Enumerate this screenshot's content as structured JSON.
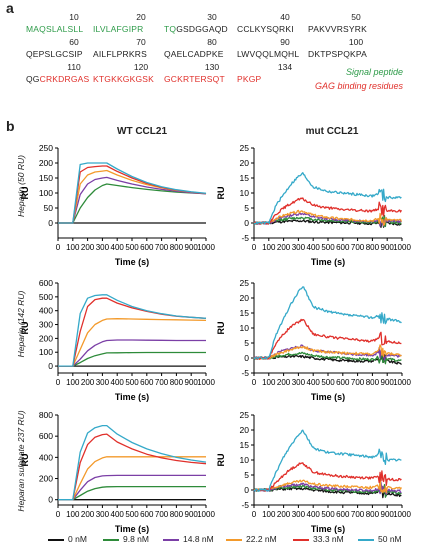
{
  "panel_a_letter": "a",
  "panel_b_letter": "b",
  "sequence": {
    "rows": [
      {
        "nums": [
          "10",
          "20",
          "30",
          "40",
          "50"
        ],
        "segments": [
          [
            {
              "t": "MAQSLALSLL",
              "c": "#2e9b49"
            }
          ],
          [
            {
              "t": "ILVLAFGIPR",
              "c": "#2e9b49"
            },
            {
              "t": " ",
              "c": "#222"
            }
          ],
          [
            {
              "t": "TQ",
              "c": "#2e9b49"
            },
            {
              "t": "GSDGGAQD",
              "c": "#222"
            }
          ],
          [
            {
              "t": "CCLKYSQRKI",
              "c": "#222"
            }
          ],
          [
            {
              "t": "PAKVVRSYRK",
              "c": "#222"
            }
          ]
        ]
      },
      {
        "nums": [
          "60",
          "70",
          "80",
          "90",
          "100"
        ],
        "segments": [
          [
            {
              "t": "QEPSLGCSIP",
              "c": "#222"
            }
          ],
          [
            {
              "t": "AILFLPRKRS",
              "c": "#222"
            }
          ],
          [
            {
              "t": "QAELCADPKE",
              "c": "#222"
            }
          ],
          [
            {
              "t": "LWVQQLMQHL",
              "c": "#222"
            }
          ],
          [
            {
              "t": "DKTPSPQKPA",
              "c": "#222"
            }
          ]
        ]
      },
      {
        "nums": [
          "110",
          "120",
          "130",
          "134",
          ""
        ],
        "segments": [
          [
            {
              "t": "QG",
              "c": "#222"
            },
            {
              "t": "CRKDRGAS",
              "c": "#e0302b"
            }
          ],
          [
            {
              "t": "KTGKKGKGSK",
              "c": "#e0302b"
            }
          ],
          [
            {
              "t": "GCKRTERSQT",
              "c": "#e0302b"
            }
          ],
          [
            {
              "t": "PKGP",
              "c": "#e0302b"
            }
          ],
          []
        ]
      }
    ],
    "signal_peptide_label": "Signal peptide",
    "signal_peptide_color": "#2e9b49",
    "gag_label": "GAG binding residues",
    "gag_color": "#e0302b"
  },
  "columns": {
    "wt": "WT CCL21",
    "mut": "mut CCL21"
  },
  "rows_labels": [
    "Heparin (50 RU)",
    "Heparin (142 RU)",
    "Heparan sulphate 237 RU)"
  ],
  "legend": [
    {
      "label": "0 nM",
      "color": "#111111"
    },
    {
      "label": "9.8 nM",
      "color": "#2e8b3a"
    },
    {
      "label": "14.8 nM",
      "color": "#7b3fa6"
    },
    {
      "label": "22.2 nM",
      "color": "#f39a2b"
    },
    {
      "label": "33.3 nM",
      "color": "#e0302b"
    },
    {
      "label": "50 nM",
      "color": "#35a9c9"
    }
  ],
  "chart_data": [
    {
      "type": "line",
      "panel": "WT CCL21 / Heparin (50 RU)",
      "xlabel": "Time (s)",
      "ylabel": "RU",
      "xlim": [
        0,
        1000
      ],
      "ylim": [
        -50,
        250
      ],
      "xticks": [
        0,
        100,
        200,
        300,
        400,
        500,
        600,
        700,
        800,
        900,
        1000
      ],
      "yticks": [
        0,
        50,
        100,
        150,
        200,
        250
      ],
      "noisy": false,
      "x": [
        0,
        100,
        150,
        200,
        250,
        300,
        330,
        400,
        500,
        600,
        700,
        800,
        900,
        1000
      ],
      "series": [
        {
          "name": "0 nM",
          "values": [
            0,
            0,
            0,
            0,
            0,
            0,
            0,
            0,
            0,
            0,
            0,
            0,
            0,
            0
          ]
        },
        {
          "name": "9.8 nM",
          "values": [
            0,
            0,
            50,
            85,
            110,
            125,
            130,
            125,
            118,
            112,
            107,
            103,
            100,
            98
          ]
        },
        {
          "name": "14.8 nM",
          "values": [
            0,
            0,
            95,
            130,
            145,
            150,
            152,
            142,
            130,
            120,
            112,
            106,
            101,
            97
          ]
        },
        {
          "name": "22.2 nM",
          "values": [
            0,
            0,
            130,
            160,
            170,
            173,
            175,
            160,
            142,
            128,
            117,
            109,
            103,
            98
          ]
        },
        {
          "name": "33.3 nM",
          "values": [
            0,
            0,
            170,
            185,
            188,
            190,
            190,
            172,
            150,
            132,
            119,
            110,
            103,
            98
          ]
        },
        {
          "name": "50 nM",
          "values": [
            0,
            0,
            195,
            200,
            200,
            200,
            200,
            180,
            155,
            135,
            121,
            111,
            104,
            99
          ]
        }
      ]
    },
    {
      "type": "line",
      "panel": "mut CCL21 / Heparin (50 RU)",
      "xlabel": "Time (s)",
      "ylabel": "RU",
      "xlim": [
        0,
        1000
      ],
      "ylim": [
        -5,
        25
      ],
      "xticks": [
        0,
        100,
        200,
        300,
        400,
        500,
        600,
        700,
        800,
        900,
        1000
      ],
      "yticks": [
        -5,
        0,
        5,
        10,
        15,
        20,
        25
      ],
      "noisy": true,
      "x": [
        0,
        100,
        150,
        200,
        250,
        300,
        330,
        400,
        500,
        600,
        700,
        800,
        850,
        900,
        1000
      ],
      "series": [
        {
          "name": "0 nM",
          "values": [
            0,
            0,
            0.3,
            0.5,
            0.6,
            0.7,
            0.7,
            0.4,
            0.2,
            0.1,
            0,
            -0.2,
            0,
            0,
            -0.5
          ]
        },
        {
          "name": "9.8 nM",
          "values": [
            0,
            0,
            0.8,
            1.2,
            1.5,
            1.7,
            1.8,
            1.2,
            0.8,
            0.6,
            0.4,
            0.2,
            0.5,
            0.5,
            -0.2
          ]
        },
        {
          "name": "14.8 nM",
          "values": [
            0,
            0,
            1.2,
            2,
            2.6,
            3,
            3.2,
            2,
            1.4,
            1,
            0.8,
            0.6,
            1,
            0.8,
            0.5
          ]
        },
        {
          "name": "22.2 nM",
          "values": [
            0,
            0,
            1.5,
            2.5,
            3.2,
            3.8,
            4,
            2.6,
            1.8,
            1.3,
            1,
            0.8,
            1.5,
            1,
            0.8
          ]
        },
        {
          "name": "33.3 nM",
          "values": [
            0,
            0,
            3,
            5,
            6.5,
            7.8,
            8,
            6,
            5,
            4.5,
            4.2,
            4,
            5,
            4,
            4
          ]
        },
        {
          "name": "50 nM",
          "values": [
            0,
            0,
            6,
            9.5,
            13,
            15.5,
            16.5,
            12,
            10.5,
            10,
            9.5,
            9,
            10,
            8.5,
            8.5
          ]
        }
      ]
    },
    {
      "type": "line",
      "panel": "WT CCL21 / Heparin (142 RU)",
      "xlabel": "Time (s)",
      "ylabel": "RU",
      "xlim": [
        0,
        1000
      ],
      "ylim": [
        -50,
        600
      ],
      "xticks": [
        0,
        100,
        200,
        300,
        400,
        500,
        600,
        700,
        800,
        900,
        1000
      ],
      "yticks": [
        0,
        100,
        200,
        300,
        400,
        500,
        600
      ],
      "noisy": false,
      "x": [
        0,
        100,
        150,
        200,
        250,
        300,
        330,
        400,
        500,
        600,
        700,
        800,
        900,
        1000
      ],
      "series": [
        {
          "name": "0 nM",
          "values": [
            0,
            0,
            0,
            0,
            0,
            0,
            0,
            0,
            0,
            0,
            0,
            0,
            0,
            0
          ]
        },
        {
          "name": "9.8 nM",
          "values": [
            0,
            0,
            25,
            55,
            75,
            88,
            95,
            96,
            97,
            98,
            98,
            98,
            98,
            98
          ]
        },
        {
          "name": "14.8 nM",
          "values": [
            0,
            0,
            50,
            110,
            150,
            175,
            185,
            188,
            188,
            187,
            186,
            185,
            185,
            185
          ]
        },
        {
          "name": "22.2 nM",
          "values": [
            0,
            0,
            120,
            240,
            300,
            330,
            340,
            342,
            340,
            338,
            336,
            334,
            332,
            330
          ]
        },
        {
          "name": "33.3 nM",
          "values": [
            0,
            0,
            250,
            430,
            480,
            490,
            490,
            455,
            420,
            395,
            375,
            360,
            352,
            345
          ]
        },
        {
          "name": "50 nM",
          "values": [
            0,
            0,
            380,
            490,
            510,
            515,
            515,
            475,
            430,
            400,
            378,
            362,
            352,
            345
          ]
        }
      ]
    },
    {
      "type": "line",
      "panel": "mut CCL21 / Heparin (142 RU)",
      "xlabel": "Time (s)",
      "ylabel": "RU",
      "xlim": [
        0,
        1000
      ],
      "ylim": [
        -5,
        25
      ],
      "xticks": [
        0,
        100,
        200,
        300,
        400,
        500,
        600,
        700,
        800,
        900,
        1000
      ],
      "yticks": [
        -5,
        0,
        5,
        10,
        15,
        20,
        25
      ],
      "noisy": true,
      "x": [
        0,
        100,
        150,
        200,
        250,
        300,
        330,
        400,
        500,
        600,
        700,
        800,
        850,
        900,
        1000
      ],
      "series": [
        {
          "name": "0 nM",
          "values": [
            0,
            0,
            0.3,
            0.4,
            0.5,
            0.5,
            0.5,
            0,
            -0.5,
            -0.8,
            -1,
            -1,
            0,
            -1,
            -2
          ]
        },
        {
          "name": "9.8 nM",
          "values": [
            0,
            0,
            0.5,
            1,
            1.3,
            1.5,
            1.6,
            0.8,
            0.3,
            0,
            -0.3,
            -0.5,
            0.5,
            -0.3,
            -1
          ]
        },
        {
          "name": "14.8 nM",
          "values": [
            0,
            0,
            1.5,
            2.5,
            3.2,
            3.8,
            4,
            2.5,
            2,
            1.5,
            1.2,
            1,
            2,
            1,
            0.5
          ]
        },
        {
          "name": "22.2 nM",
          "values": [
            0,
            0,
            1.2,
            2,
            2.8,
            3.5,
            3.8,
            2.5,
            2,
            1.7,
            1.5,
            1.3,
            2.5,
            1.5,
            1
          ]
        },
        {
          "name": "33.3 nM",
          "values": [
            0,
            0,
            5,
            8,
            10.5,
            12,
            13,
            8,
            7,
            6.5,
            6,
            5.5,
            7,
            5.5,
            5
          ]
        },
        {
          "name": "50 nM",
          "values": [
            0,
            0,
            8,
            13,
            18,
            22,
            24,
            17,
            15.5,
            14.5,
            14,
            13.5,
            14,
            13,
            12
          ]
        }
      ]
    },
    {
      "type": "line",
      "panel": "WT CCL21 / Heparan sulphate 237 RU)",
      "xlabel": "Time (s)",
      "ylabel": "RU",
      "xlim": [
        0,
        1000
      ],
      "ylim": [
        -50,
        800
      ],
      "xticks": [
        0,
        100,
        200,
        300,
        400,
        500,
        600,
        700,
        800,
        900,
        1000
      ],
      "yticks": [
        0,
        200,
        400,
        600,
        800
      ],
      "noisy": false,
      "x": [
        0,
        100,
        150,
        200,
        250,
        300,
        330,
        400,
        500,
        600,
        700,
        800,
        900,
        1000
      ],
      "series": [
        {
          "name": "0 nM",
          "values": [
            0,
            0,
            0,
            0,
            0,
            0,
            0,
            0,
            0,
            0,
            0,
            0,
            0,
            0
          ]
        },
        {
          "name": "9.8 nM",
          "values": [
            0,
            0,
            40,
            80,
            105,
            118,
            122,
            124,
            124,
            124,
            124,
            124,
            124,
            124
          ]
        },
        {
          "name": "14.8 nM",
          "values": [
            0,
            0,
            90,
            170,
            210,
            225,
            228,
            230,
            230,
            230,
            230,
            230,
            230,
            230
          ]
        },
        {
          "name": "22.2 nM",
          "values": [
            0,
            0,
            150,
            290,
            360,
            395,
            405,
            405,
            405,
            405,
            405,
            405,
            405,
            405
          ]
        },
        {
          "name": "33.3 nM",
          "values": [
            0,
            0,
            350,
            520,
            590,
            615,
            620,
            545,
            480,
            430,
            395,
            370,
            352,
            340
          ]
        },
        {
          "name": "50 nM",
          "values": [
            0,
            0,
            450,
            630,
            680,
            700,
            700,
            620,
            540,
            480,
            435,
            400,
            375,
            355
          ]
        }
      ]
    },
    {
      "type": "line",
      "panel": "mut CCL21 / Heparan sulphate 237 RU)",
      "xlabel": "Time (s)",
      "ylabel": "RU",
      "xlim": [
        0,
        1000
      ],
      "ylim": [
        -5,
        25
      ],
      "xticks": [
        0,
        100,
        200,
        300,
        400,
        500,
        600,
        700,
        800,
        900,
        1000
      ],
      "yticks": [
        -5,
        0,
        5,
        10,
        15,
        20,
        25
      ],
      "noisy": true,
      "x": [
        0,
        100,
        150,
        200,
        250,
        300,
        330,
        400,
        500,
        600,
        700,
        800,
        850,
        900,
        1000
      ],
      "series": [
        {
          "name": "0 nM",
          "values": [
            0,
            0,
            0.2,
            0.3,
            0.4,
            0.4,
            0.4,
            0,
            -0.5,
            -0.8,
            -1,
            -1.2,
            -0.5,
            -1,
            -2
          ]
        },
        {
          "name": "9.8 nM",
          "values": [
            0,
            0,
            0.4,
            0.8,
            1,
            1.2,
            1.2,
            0.5,
            0,
            -0.3,
            -0.5,
            -0.7,
            0,
            -0.6,
            -1.2
          ]
        },
        {
          "name": "14.8 nM",
          "values": [
            0,
            0,
            0.8,
            1.3,
            1.6,
            1.8,
            2,
            1,
            0.5,
            0.2,
            0,
            -0.2,
            0.5,
            0,
            -0.5
          ]
        },
        {
          "name": "22.2 nM",
          "values": [
            0,
            0,
            1,
            1.8,
            2.4,
            2.8,
            3,
            2,
            1.5,
            1.2,
            1,
            0.8,
            1.5,
            0.8,
            0.5
          ]
        },
        {
          "name": "33.3 nM",
          "values": [
            0,
            0,
            2.5,
            5,
            7,
            8.5,
            9,
            6,
            5,
            4.5,
            4.2,
            4,
            4.5,
            3.5,
            3.5
          ]
        },
        {
          "name": "50 nM",
          "values": [
            0,
            0,
            6,
            11,
            15,
            18.5,
            20,
            14,
            12.5,
            12,
            11.5,
            11,
            12,
            10,
            10
          ]
        }
      ]
    }
  ]
}
